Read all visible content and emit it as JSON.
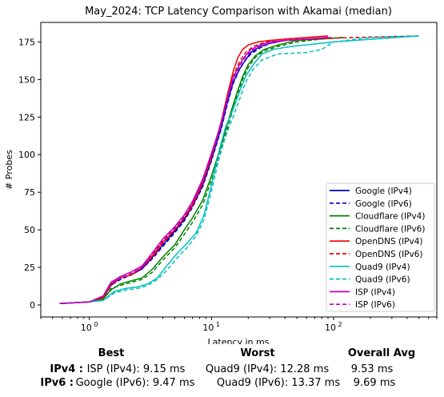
{
  "chart_data": {
    "type": "line",
    "title": "May_2024: TCP Latency Comparison with Akamai (median)",
    "xlabel": "Latency in ms",
    "ylabel": "# Probes",
    "xscale": "log",
    "xlim": [
      0.4,
      700
    ],
    "ylim": [
      -8,
      188
    ],
    "x_ticks": [
      {
        "value": 1,
        "label": "10^0"
      },
      {
        "value": 10,
        "label": "10^1"
      },
      {
        "value": 100,
        "label": "10^2"
      }
    ],
    "y_ticks": [
      0,
      25,
      50,
      75,
      100,
      125,
      150,
      175
    ],
    "grid": false,
    "legend_position": "lower-right",
    "series": [
      {
        "name": "Google (IPv4)",
        "color": "#0000cc",
        "dash": false,
        "x": [
          0.57,
          1.0,
          1.3,
          1.5,
          1.8,
          2.2,
          2.7,
          3.3,
          4.0,
          5.0,
          6.0,
          7.0,
          8.5,
          10.0,
          12.0,
          13.5,
          15.0,
          17.0,
          19.0,
          21.0,
          25.0,
          30.0,
          40.0,
          60.0,
          90.0
        ],
        "y": [
          1,
          2,
          5,
          13,
          18,
          20,
          24,
          32,
          40,
          49,
          57,
          66,
          80,
          97,
          118,
          135,
          148,
          157,
          163,
          168,
          172,
          174,
          176,
          177,
          178
        ]
      },
      {
        "name": "Google (IPv6)",
        "color": "#0000cc",
        "dash": true,
        "x": [
          0.6,
          1.0,
          1.3,
          1.5,
          1.8,
          2.2,
          2.7,
          3.3,
          4.0,
          5.0,
          6.0,
          7.0,
          8.5,
          10.0,
          12.0,
          13.5,
          15.0,
          17.0,
          19.0,
          21.0,
          25.0,
          30.0,
          40.0,
          60.0,
          100.0
        ],
        "y": [
          1,
          2,
          5,
          13,
          17,
          20,
          24,
          31,
          39,
          48,
          56,
          65,
          79,
          96,
          117,
          134,
          147,
          157,
          163,
          167,
          171,
          174,
          176,
          177,
          178
        ]
      },
      {
        "name": "Cloudflare (IPv4)",
        "color": "#008000",
        "dash": false,
        "x": [
          0.6,
          1.0,
          1.3,
          1.5,
          1.8,
          2.2,
          2.7,
          3.3,
          4.0,
          5.0,
          6.0,
          7.0,
          8.5,
          10.0,
          12.0,
          14.0,
          16.0,
          18.0,
          20.0,
          23.0,
          27.0,
          35.0,
          50.0,
          80.0,
          120.0
        ],
        "y": [
          1,
          2,
          4,
          10,
          14,
          16,
          18,
          24,
          32,
          40,
          50,
          58,
          70,
          86,
          106,
          125,
          140,
          152,
          160,
          166,
          170,
          173,
          176,
          177,
          178
        ]
      },
      {
        "name": "Cloudflare (IPv6)",
        "color": "#008000",
        "dash": true,
        "x": [
          0.6,
          1.0,
          1.3,
          1.5,
          1.8,
          2.2,
          2.7,
          3.3,
          4.0,
          5.0,
          6.0,
          7.0,
          8.5,
          10.0,
          12.0,
          14.0,
          16.0,
          18.0,
          20.0,
          23.0,
          27.0,
          35.0,
          50.0,
          80.0,
          120.0
        ],
        "y": [
          1,
          2,
          4,
          11,
          13,
          15,
          17,
          22,
          30,
          38,
          47,
          55,
          67,
          83,
          103,
          122,
          138,
          150,
          158,
          165,
          169,
          172,
          175,
          177,
          178
        ]
      },
      {
        "name": "OpenDNS (IPv4)",
        "color": "#ee0000",
        "dash": false,
        "x": [
          0.57,
          1.0,
          1.3,
          1.5,
          1.8,
          2.2,
          2.7,
          3.3,
          4.0,
          5.0,
          6.0,
          7.0,
          8.5,
          10.0,
          12.0,
          13.5,
          15.0,
          16.5,
          18.0,
          20.0,
          24.0,
          30.0,
          40.0,
          60.0,
          90.0
        ],
        "y": [
          1,
          2,
          5,
          14,
          18,
          20,
          25,
          33,
          42,
          50,
          58,
          67,
          82,
          99,
          122,
          140,
          155,
          165,
          170,
          173,
          175,
          176,
          177,
          178,
          179
        ]
      },
      {
        "name": "OpenDNS (IPv6)",
        "color": "#ee0000",
        "dash": true,
        "x": [
          0.6,
          1.0,
          1.3,
          1.5,
          1.8,
          2.2,
          2.7,
          3.3,
          4.0,
          5.0,
          6.0,
          7.0,
          8.5,
          10.0,
          12.0,
          13.5,
          15.0,
          17.0,
          19.0,
          22.0,
          28.0,
          40.0,
          70.0,
          150.0,
          500.0
        ],
        "y": [
          1,
          2,
          5,
          13,
          18,
          20,
          25,
          32,
          41,
          50,
          58,
          66,
          81,
          98,
          120,
          138,
          152,
          162,
          168,
          172,
          175,
          176,
          177,
          178,
          179
        ]
      },
      {
        "name": "Quad9 (IPv4)",
        "color": "#00bfbf",
        "dash": false,
        "x": [
          0.6,
          1.0,
          1.3,
          1.6,
          2.0,
          2.5,
          3.0,
          3.6,
          4.3,
          5.2,
          6.3,
          7.5,
          8.7,
          10.0,
          11.5,
          13.0,
          15.0,
          17.0,
          19.0,
          22.0,
          26.0,
          32.0,
          45.0,
          100.0,
          500.0
        ],
        "y": [
          1,
          2,
          3,
          9,
          11,
          12,
          14,
          18,
          26,
          34,
          41,
          48,
          60,
          80,
          102,
          118,
          130,
          142,
          152,
          160,
          167,
          170,
          172,
          175,
          179
        ]
      },
      {
        "name": "Quad9 (IPv6)",
        "color": "#00bfbf",
        "dash": true,
        "x": [
          0.6,
          1.0,
          1.3,
          1.6,
          2.0,
          2.5,
          3.0,
          3.6,
          4.3,
          5.2,
          6.3,
          7.5,
          8.7,
          10.0,
          11.5,
          13.0,
          15.0,
          17.0,
          19.0,
          22.0,
          26.0,
          35.0,
          60.0,
          80.0,
          100.0,
          200.0,
          500.0
        ],
        "y": [
          1,
          2,
          3,
          8,
          10,
          11,
          13,
          17,
          23,
          31,
          38,
          46,
          57,
          76,
          97,
          112,
          125,
          137,
          148,
          157,
          163,
          167,
          168,
          170,
          175,
          178,
          179
        ]
      },
      {
        "name": "ISP (IPv4)",
        "color": "#bf00bf",
        "dash": false,
        "x": [
          0.57,
          1.0,
          1.3,
          1.5,
          1.8,
          2.2,
          2.7,
          3.3,
          4.0,
          5.0,
          6.0,
          7.0,
          8.5,
          10.0,
          12.0,
          13.5,
          15.0,
          17.0,
          19.0,
          21.0,
          25.0,
          30.0,
          40.0,
          60.0,
          90.0
        ],
        "y": [
          1,
          2,
          6,
          15,
          19,
          22,
          26,
          35,
          44,
          52,
          60,
          69,
          84,
          101,
          121,
          138,
          151,
          160,
          166,
          170,
          173,
          175,
          176,
          177,
          178
        ]
      },
      {
        "name": "ISP (IPv6)",
        "color": "#bf00bf",
        "dash": true,
        "x": [
          0.6,
          1.0,
          1.3,
          1.5,
          1.8,
          2.2,
          2.7,
          3.3,
          4.0,
          5.0,
          6.0,
          7.0,
          8.5,
          10.0,
          12.0,
          13.5,
          15.0,
          17.0,
          19.0,
          21.0,
          25.0,
          30.0,
          40.0,
          60.0,
          100.0
        ],
        "y": [
          1,
          2,
          6,
          14,
          18,
          21,
          25,
          34,
          43,
          51,
          59,
          68,
          83,
          100,
          120,
          137,
          150,
          159,
          165,
          169,
          172,
          174,
          176,
          177,
          178
        ]
      }
    ]
  },
  "summary": {
    "headers": {
      "best": "Best",
      "worst": "Worst",
      "overall": "Overall Avg"
    },
    "rows": [
      {
        "label": "IPv4 :",
        "best": "ISP (IPv4): 9.15 ms",
        "worst": "Quad9 (IPv4): 12.28 ms",
        "overall": "9.53 ms"
      },
      {
        "label": "IPv6 :",
        "best": "Google (IPv6): 9.47 ms",
        "worst": "Quad9 (IPv6): 13.37 ms",
        "overall": "9.69 ms"
      }
    ]
  }
}
